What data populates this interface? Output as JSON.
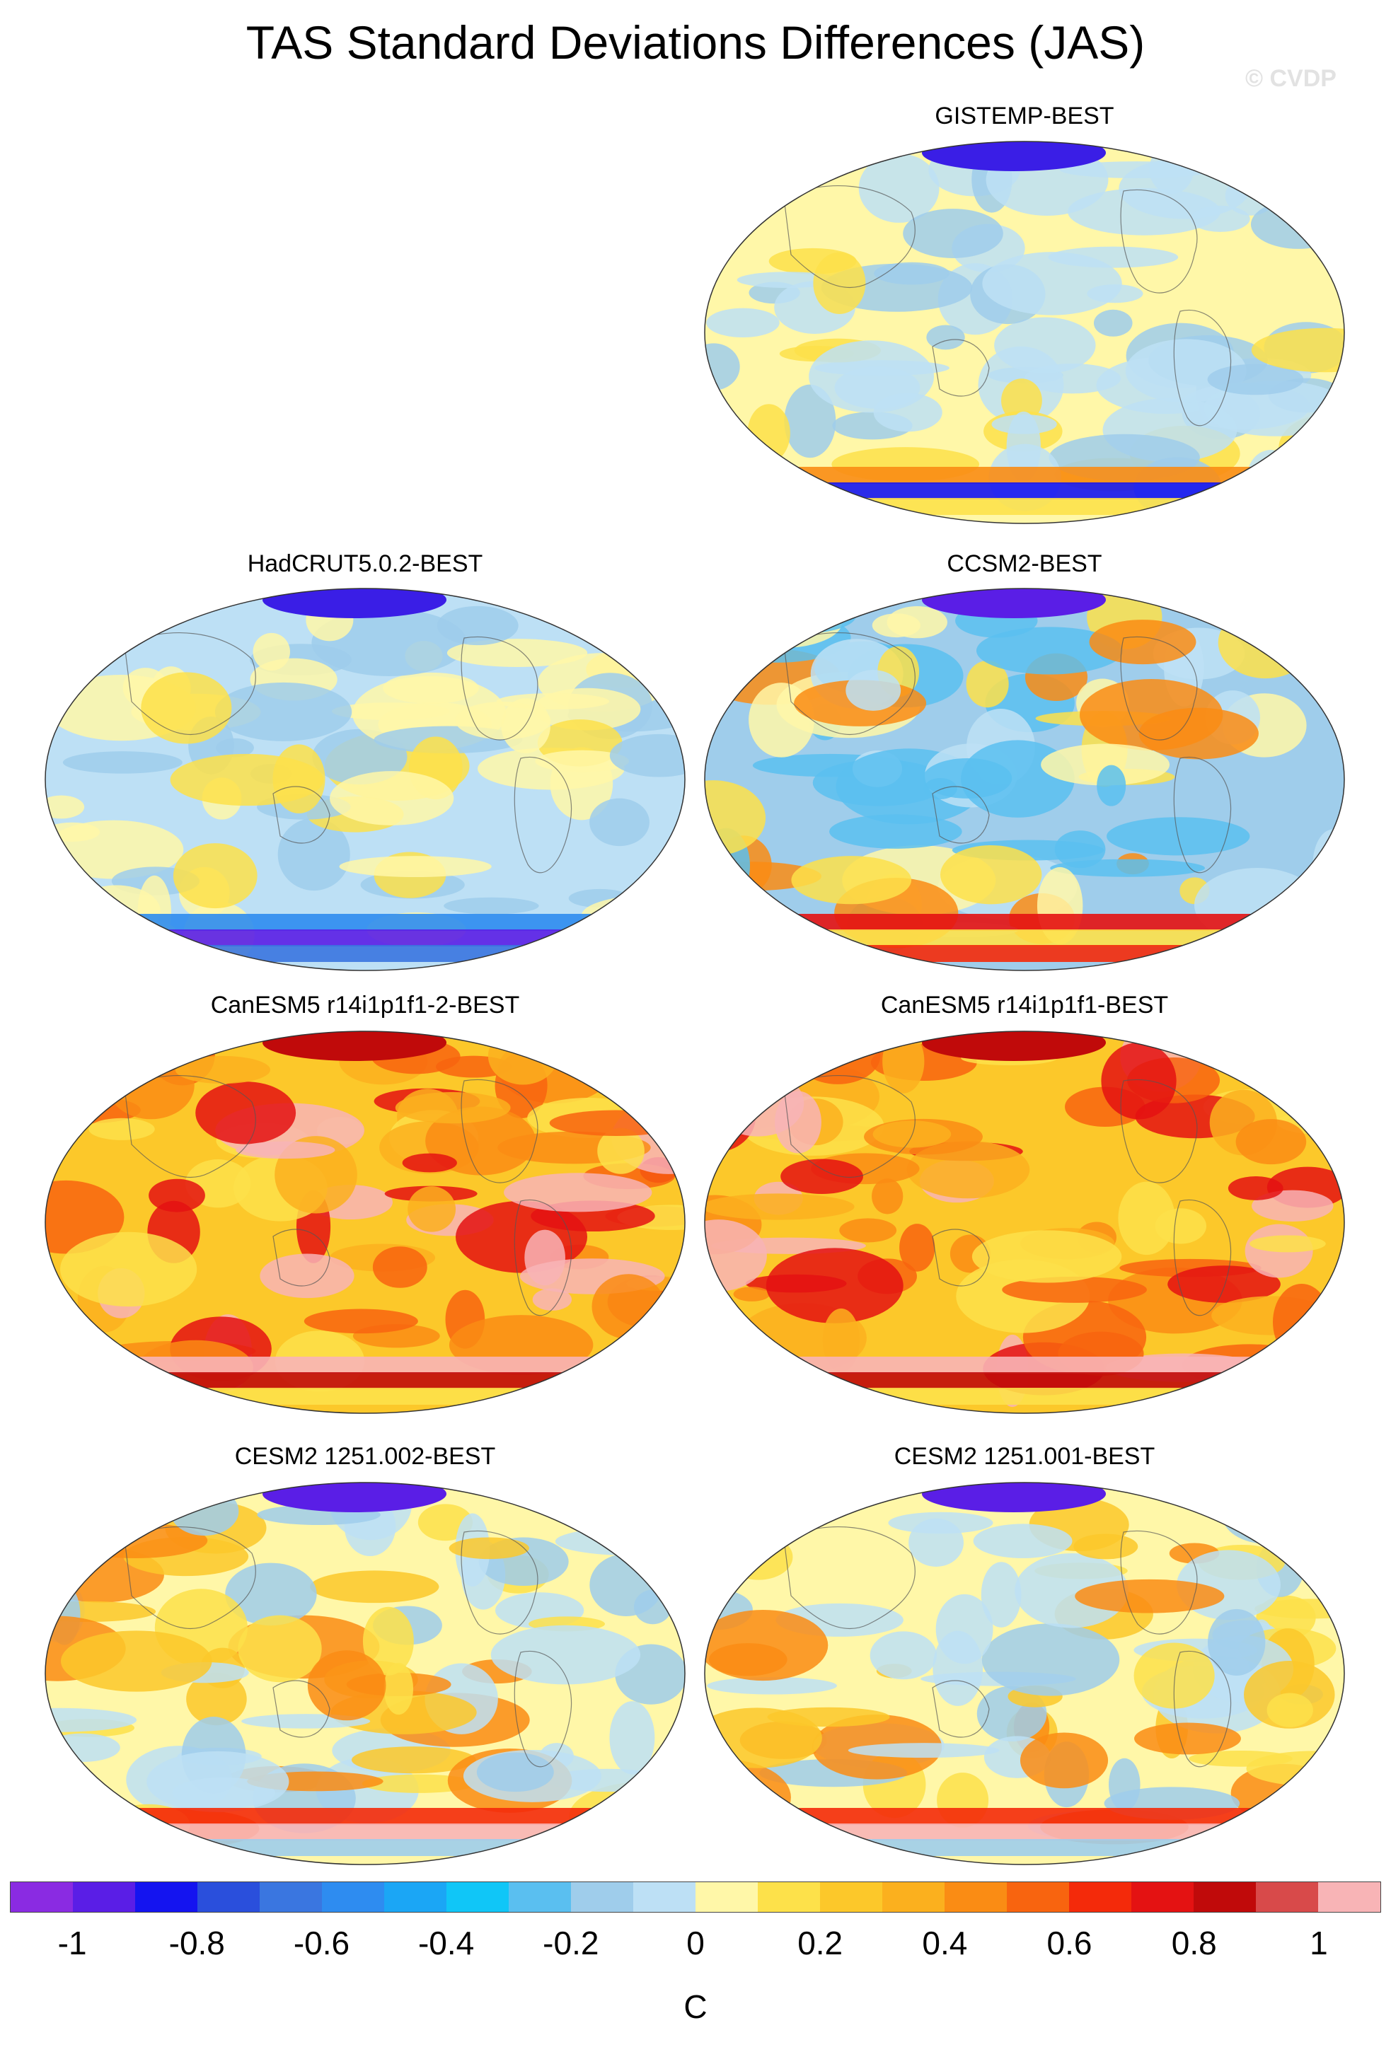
{
  "title": "TAS Standard Deviations Differences (JAS)",
  "watermark": "© CVDP",
  "panels": [
    {
      "label": "GISTEMP-BEST",
      "pattern": "gistemp"
    },
    {
      "label": "HadCRUT5.0.2-BEST",
      "pattern": "hadcrut"
    },
    {
      "label": "CCSM2-BEST",
      "pattern": "ccsm2"
    },
    {
      "label": "CanESM5 r14i1p1f1-2-BEST",
      "pattern": "canesm"
    },
    {
      "label": "CanESM5 r14i1p1f1-BEST",
      "pattern": "canesm"
    },
    {
      "label": "CESM2 1251.002-BEST",
      "pattern": "cesm2"
    },
    {
      "label": "CESM2 1251.001-BEST",
      "pattern": "cesm2"
    }
  ],
  "colorbar": {
    "colors": [
      "#8a2be2",
      "#5a1ee6",
      "#1414f0",
      "#2a4fdc",
      "#3a76e0",
      "#2e8cf0",
      "#1ba6f5",
      "#10c6f7",
      "#5abff0",
      "#9fcdeb",
      "#bde0f5",
      "#fff7a8",
      "#fde14a",
      "#fcc82a",
      "#fbb01e",
      "#fa8c14",
      "#f8640f",
      "#f42a0a",
      "#e41212",
      "#c00a0a",
      "#d84a4a",
      "#f8b4b6"
    ],
    "ticks": [
      "-1",
      "-0.8",
      "-0.6",
      "-0.4",
      "-0.2",
      "0",
      "0.2",
      "0.4",
      "0.6",
      "0.8",
      "1"
    ],
    "unit": "C"
  }
}
